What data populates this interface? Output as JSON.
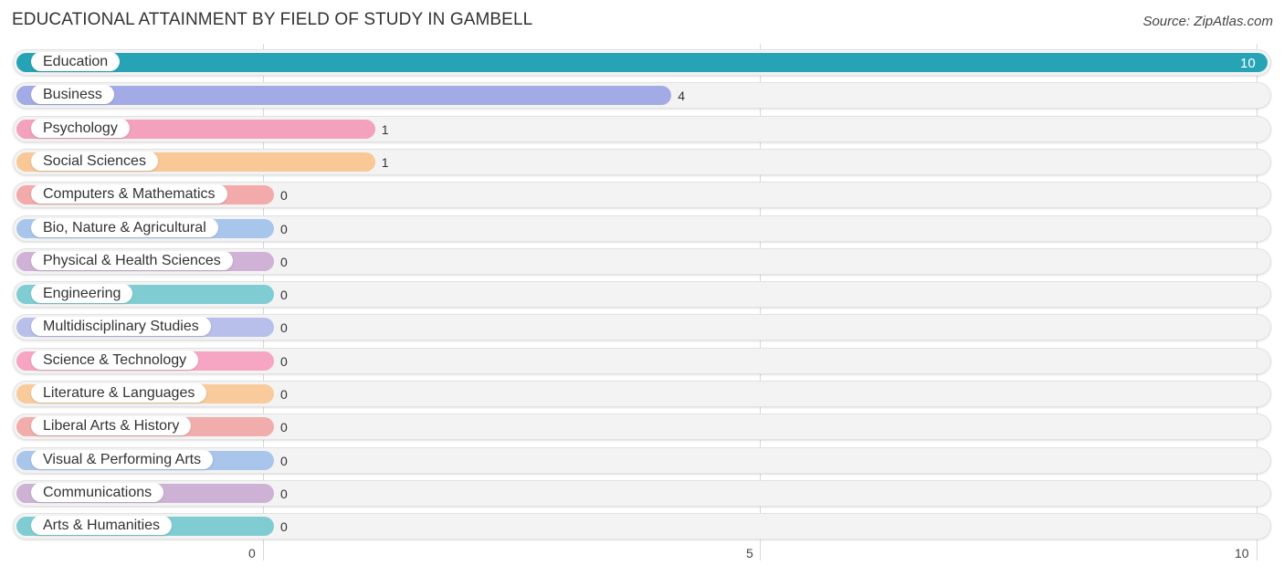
{
  "title": "EDUCATIONAL ATTAINMENT BY FIELD OF STUDY IN GAMBELL",
  "source": "Source: ZipAtlas.com",
  "axis": {
    "ticks": [
      "0",
      "5",
      "10"
    ]
  },
  "rows": [
    {
      "label": "Education",
      "value": "10",
      "color": "#26a4b5"
    },
    {
      "label": "Business",
      "value": "4",
      "color": "#a3abe6"
    },
    {
      "label": "Psychology",
      "value": "1",
      "color": "#f4a1bd"
    },
    {
      "label": "Social Sciences",
      "value": "1",
      "color": "#f9c897"
    },
    {
      "label": "Computers & Mathematics",
      "value": "0",
      "color": "#f2aaaa"
    },
    {
      "label": "Bio, Nature & Agricultural",
      "value": "0",
      "color": "#a8c6ec"
    },
    {
      "label": "Physical & Health Sciences",
      "value": "0",
      "color": "#cfb2d6"
    },
    {
      "label": "Engineering",
      "value": "0",
      "color": "#7fcdd3"
    },
    {
      "label": "Multidisciplinary Studies",
      "value": "0",
      "color": "#b8bfea"
    },
    {
      "label": "Science & Technology",
      "value": "0",
      "color": "#f6a6c2"
    },
    {
      "label": "Literature & Languages",
      "value": "0",
      "color": "#f9cb9c"
    },
    {
      "label": "Liberal Arts & History",
      "value": "0",
      "color": "#f0adab"
    },
    {
      "label": "Visual & Performing Arts",
      "value": "0",
      "color": "#a9c5ec"
    },
    {
      "label": "Communications",
      "value": "0",
      "color": "#cdb2d6"
    },
    {
      "label": "Arts & Humanities",
      "value": "0",
      "color": "#7fcdd3"
    }
  ],
  "chart_data": {
    "type": "bar",
    "orientation": "horizontal",
    "title": "EDUCATIONAL ATTAINMENT BY FIELD OF STUDY IN GAMBELL",
    "source": "Source: ZipAtlas.com",
    "categories": [
      "Education",
      "Business",
      "Psychology",
      "Social Sciences",
      "Computers & Mathematics",
      "Bio, Nature & Agricultural",
      "Physical & Health Sciences",
      "Engineering",
      "Multidisciplinary Studies",
      "Science & Technology",
      "Literature & Languages",
      "Liberal Arts & History",
      "Visual & Performing Arts",
      "Communications",
      "Arts & Humanities"
    ],
    "values": [
      10,
      4,
      1,
      1,
      0,
      0,
      0,
      0,
      0,
      0,
      0,
      0,
      0,
      0,
      0
    ],
    "xlabel": "",
    "ylabel": "",
    "xlim": [
      0,
      10
    ],
    "xticks": [
      0,
      5,
      10
    ],
    "grid": true,
    "legend": null
  }
}
